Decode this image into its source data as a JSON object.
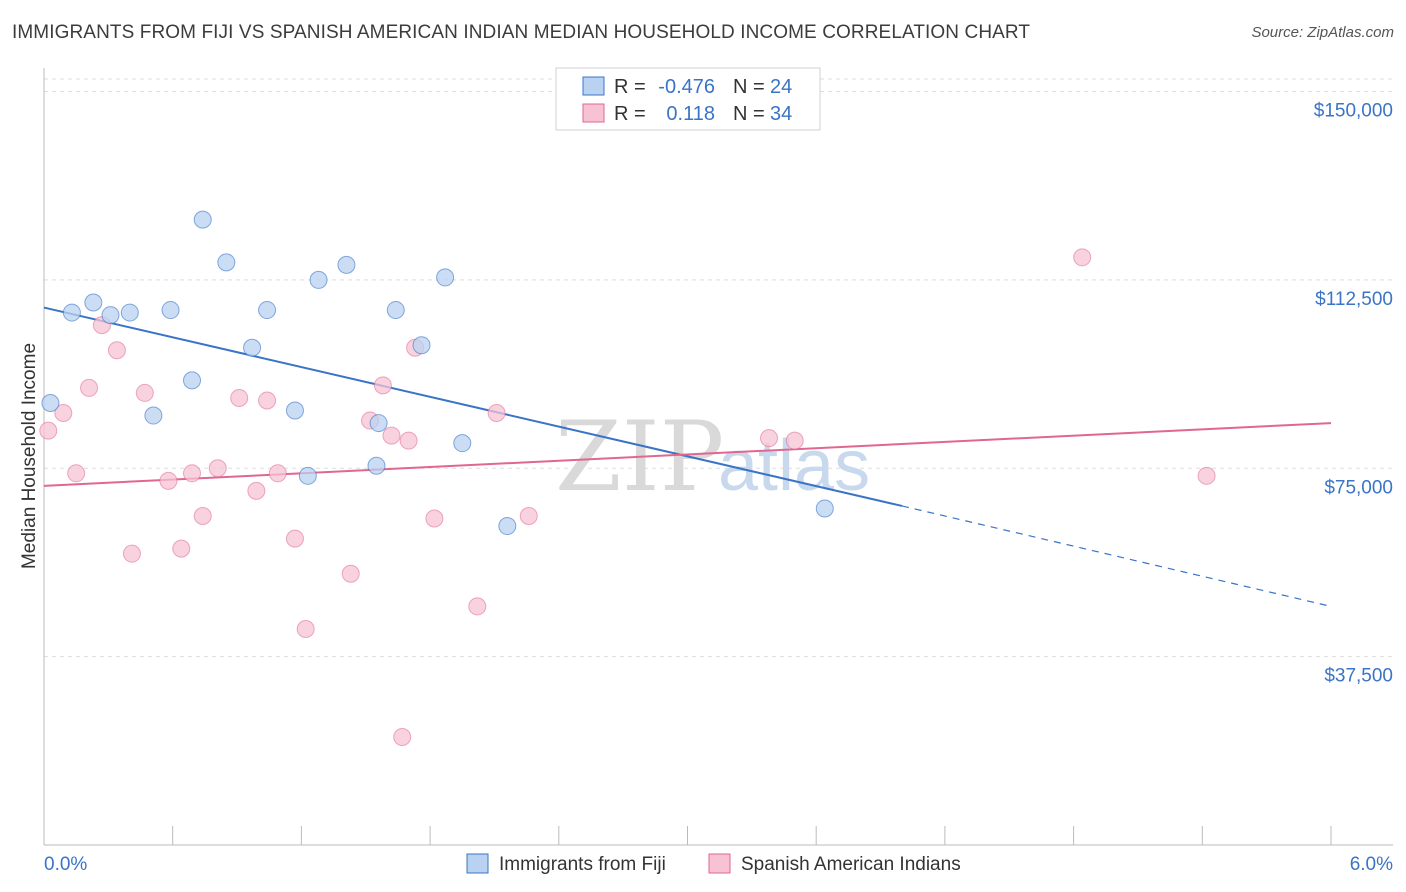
{
  "header": {
    "title": "IMMIGRANTS FROM FIJI VS SPANISH AMERICAN INDIAN MEDIAN HOUSEHOLD INCOME CORRELATION CHART",
    "source": "Source: ZipAtlas.com"
  },
  "watermark": {
    "zip": "ZIP",
    "atlas": "atlas"
  },
  "legend": {
    "r_label": "R =",
    "n_label": "N =",
    "rows": [
      {
        "r": "-0.476",
        "n": "24"
      },
      {
        "r": "0.118",
        "n": "34"
      }
    ]
  },
  "chart_data": {
    "type": "scatter",
    "ylabel": "Median Household Income",
    "xlim": [
      0,
      6
    ],
    "ylim": [
      0,
      152500
    ],
    "x_tick_labels": [
      "0.0%",
      "6.0%"
    ],
    "y_ticks": [
      37500,
      75000,
      112500,
      150000
    ],
    "y_tick_labels": [
      "$37,500",
      "$75,000",
      "$112,500",
      "$150,000"
    ],
    "grid": true,
    "colors": {
      "fiji": "#3a74c7",
      "fiji_fill": "#b9d2f1",
      "sai": "#e0678f",
      "sai_fill": "#f7c3d4"
    },
    "series": [
      {
        "name": "Immigrants from Fiji",
        "points": [
          [
            0.03,
            88000
          ],
          [
            0.13,
            106000
          ],
          [
            0.23,
            108000
          ],
          [
            0.31,
            105500
          ],
          [
            0.4,
            106000
          ],
          [
            0.51,
            85500
          ],
          [
            0.59,
            106500
          ],
          [
            0.69,
            92500
          ],
          [
            0.74,
            124500
          ],
          [
            0.85,
            116000
          ],
          [
            0.97,
            99000
          ],
          [
            1.04,
            106500
          ],
          [
            1.17,
            86500
          ],
          [
            1.23,
            73500
          ],
          [
            1.28,
            112500
          ],
          [
            1.41,
            115500
          ],
          [
            1.55,
            75500
          ],
          [
            1.56,
            84000
          ],
          [
            1.64,
            106500
          ],
          [
            1.76,
            99500
          ],
          [
            1.87,
            113000
          ],
          [
            1.95,
            80000
          ],
          [
            2.16,
            63500
          ],
          [
            3.64,
            67000
          ]
        ],
        "trend": {
          "x0": 0,
          "y0": 107000,
          "x1": 4.0,
          "y1": 67500,
          "x_dash_end": 6.0,
          "y_dash_end": 47500
        }
      },
      {
        "name": "Spanish American Indians",
        "points": [
          [
            0.02,
            82500
          ],
          [
            0.09,
            86000
          ],
          [
            0.15,
            74000
          ],
          [
            0.21,
            91000
          ],
          [
            0.27,
            103500
          ],
          [
            0.34,
            98500
          ],
          [
            0.41,
            58000
          ],
          [
            0.47,
            90000
          ],
          [
            0.58,
            72500
          ],
          [
            0.64,
            59000
          ],
          [
            0.69,
            74000
          ],
          [
            0.74,
            65500
          ],
          [
            0.81,
            75000
          ],
          [
            0.91,
            89000
          ],
          [
            0.99,
            70500
          ],
          [
            1.04,
            88500
          ],
          [
            1.09,
            74000
          ],
          [
            1.17,
            61000
          ],
          [
            1.22,
            43000
          ],
          [
            1.43,
            54000
          ],
          [
            1.52,
            84500
          ],
          [
            1.58,
            91500
          ],
          [
            1.62,
            81500
          ],
          [
            1.67,
            21500
          ],
          [
            1.7,
            80500
          ],
          [
            1.73,
            99000
          ],
          [
            1.82,
            65000
          ],
          [
            2.02,
            47500
          ],
          [
            2.11,
            86000
          ],
          [
            2.26,
            65500
          ],
          [
            3.38,
            81000
          ],
          [
            3.5,
            80500
          ],
          [
            4.84,
            117000
          ],
          [
            5.42,
            73500
          ]
        ],
        "trend": {
          "x0": 0,
          "y0": 71500,
          "x1": 6.0,
          "y1": 84000
        }
      }
    ]
  }
}
